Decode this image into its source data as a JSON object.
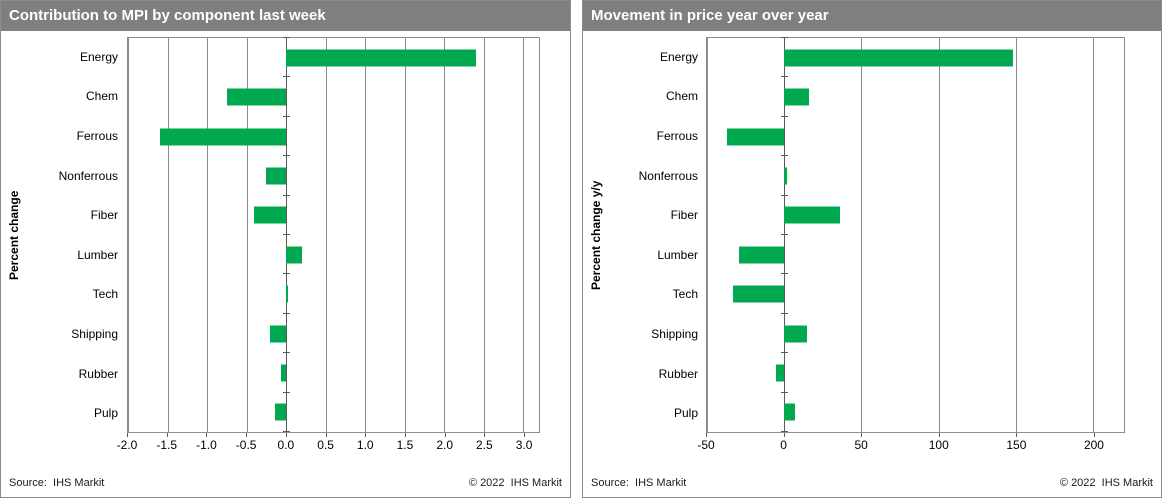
{
  "panels": [
    {
      "source": "Source:  IHS Markit",
      "copyright": "© 2022  IHS Markit"
    },
    {
      "source": "Source:  IHS Markit",
      "copyright": "© 2022  IHS Markit"
    }
  ],
  "colors": {
    "bar_green": "#00A850",
    "title_bar_bg": "#7F7F7F",
    "title_text": "#FFFFFF",
    "gridline": "#8C8C8C",
    "zero_axis": "#595959"
  },
  "chart_data": [
    {
      "type": "bar",
      "orientation": "horizontal",
      "title": "Contribution to MPI by component last week",
      "ylabel": "Percent change",
      "xlabel": "",
      "categories": [
        "Energy",
        "Chem",
        "Ferrous",
        "Nonferrous",
        "Fiber",
        "Lumber",
        "Tech",
        "Shipping",
        "Rubber",
        "Pulp"
      ],
      "values": [
        2.4,
        -0.75,
        -1.6,
        -0.25,
        -0.4,
        0.2,
        0.02,
        -0.2,
        -0.07,
        -0.14
      ],
      "xlim": [
        -2.0,
        3.2
      ],
      "ticks": [
        -2.0,
        -1.5,
        -1.0,
        -0.5,
        0.0,
        0.5,
        1.0,
        1.5,
        2.0,
        2.5,
        3.0
      ],
      "tick_labels": [
        "-2.0",
        "-1.5",
        "-1.0",
        "-0.5",
        "0.0",
        "0.5",
        "1.0",
        "1.5",
        "2.0",
        "2.5",
        "3.0"
      ],
      "bar_color": "#00A850",
      "grid": true,
      "legend": "none"
    },
    {
      "type": "bar",
      "orientation": "horizontal",
      "title": "Movement in price year over year",
      "ylabel": "Percent change y/y",
      "xlabel": "",
      "categories": [
        "Energy",
        "Chem",
        "Ferrous",
        "Nonferrous",
        "Fiber",
        "Lumber",
        "Tech",
        "Shipping",
        "Rubber",
        "Pulp"
      ],
      "values": [
        148,
        16,
        -37,
        2,
        36,
        -29,
        -33,
        15,
        -5,
        7
      ],
      "xlim": [
        -50,
        220
      ],
      "ticks": [
        -50,
        0,
        50,
        100,
        150,
        200
      ],
      "tick_labels": [
        "-50",
        "0",
        "50",
        "100",
        "150",
        "200"
      ],
      "bar_color": "#00A850",
      "grid": true,
      "legend": "none"
    }
  ]
}
